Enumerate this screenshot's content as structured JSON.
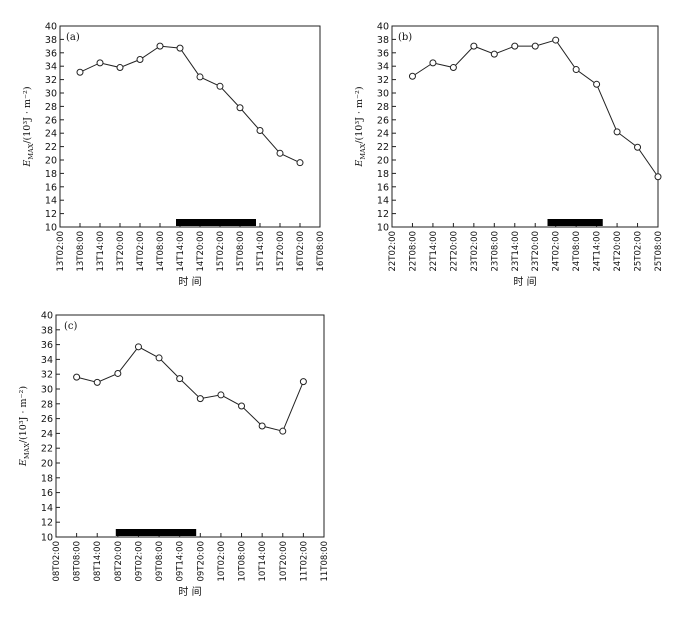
{
  "chart_data": [
    {
      "type": "line",
      "panel_label": "(a)",
      "xlabel": "时 间",
      "ylabel": {
        "symbol": "E",
        "subscript": "MAX",
        "unit": "/(10³J · m⁻²)"
      },
      "ylim": [
        10,
        40
      ],
      "yticks": [
        10,
        12,
        14,
        16,
        18,
        20,
        22,
        24,
        26,
        28,
        30,
        32,
        34,
        36,
        38,
        40
      ],
      "categories": [
        "13T02:00",
        "13T08:00",
        "13T14:00",
        "13T20:00",
        "14T02:00",
        "14T08:00",
        "14T14:00",
        "14T20:00",
        "15T02:00",
        "15T08:00",
        "15T14:00",
        "15T20:00",
        "16T02:00",
        "16T08:00"
      ],
      "series": [
        {
          "values": [
            null,
            33.1,
            34.5,
            33.8,
            35.0,
            37.0,
            36.7,
            32.4,
            31.0,
            27.8,
            24.4,
            21.0,
            19.6,
            null
          ]
        }
      ],
      "period_bar": {
        "from": 5.8,
        "to": 9.8
      },
      "grid": false
    },
    {
      "type": "line",
      "panel_label": "(b)",
      "xlabel": "时 间",
      "ylabel": {
        "symbol": "E",
        "subscript": "MAX",
        "unit": "/(10³J · m⁻²)"
      },
      "ylim": [
        10,
        40
      ],
      "yticks": [
        10,
        12,
        14,
        16,
        18,
        20,
        22,
        24,
        26,
        28,
        30,
        32,
        34,
        36,
        38,
        40
      ],
      "categories": [
        "22T02:00",
        "22T08:00",
        "22T14:00",
        "22T20:00",
        "23T02:00",
        "23T08:00",
        "23T14:00",
        "23T20:00",
        "24T02:00",
        "24T08:00",
        "24T14:00",
        "24T20:00",
        "25T02:00",
        "25T08:00"
      ],
      "series": [
        {
          "values": [
            null,
            32.5,
            34.5,
            33.8,
            37.0,
            35.8,
            37.0,
            37.0,
            37.9,
            33.5,
            31.3,
            24.2,
            21.9,
            17.5
          ]
        }
      ],
      "period_bar": {
        "from": 7.6,
        "to": 10.3
      },
      "grid": false
    },
    {
      "type": "line",
      "panel_label": "(c)",
      "xlabel": "时 间",
      "ylabel": {
        "symbol": "E",
        "subscript": "MAX",
        "unit": "/(10³J · m⁻²)"
      },
      "ylim": [
        10,
        40
      ],
      "yticks": [
        10,
        12,
        14,
        16,
        18,
        20,
        22,
        24,
        26,
        28,
        30,
        32,
        34,
        36,
        38,
        40
      ],
      "categories": [
        "08T02:00",
        "08T08:00",
        "08T14:00",
        "08T20:00",
        "09T02:00",
        "09T08:00",
        "09T14:00",
        "09T20:00",
        "10T02:00",
        "10T08:00",
        "10T14:00",
        "10T20:00",
        "11T02:00",
        "11T08:00"
      ],
      "series": [
        {
          "values": [
            null,
            31.6,
            30.9,
            32.1,
            35.7,
            34.2,
            31.4,
            28.7,
            29.2,
            27.7,
            25.0,
            24.3,
            31.0,
            null
          ]
        }
      ],
      "period_bar": {
        "from": 2.9,
        "to": 6.8
      },
      "grid": false
    }
  ]
}
